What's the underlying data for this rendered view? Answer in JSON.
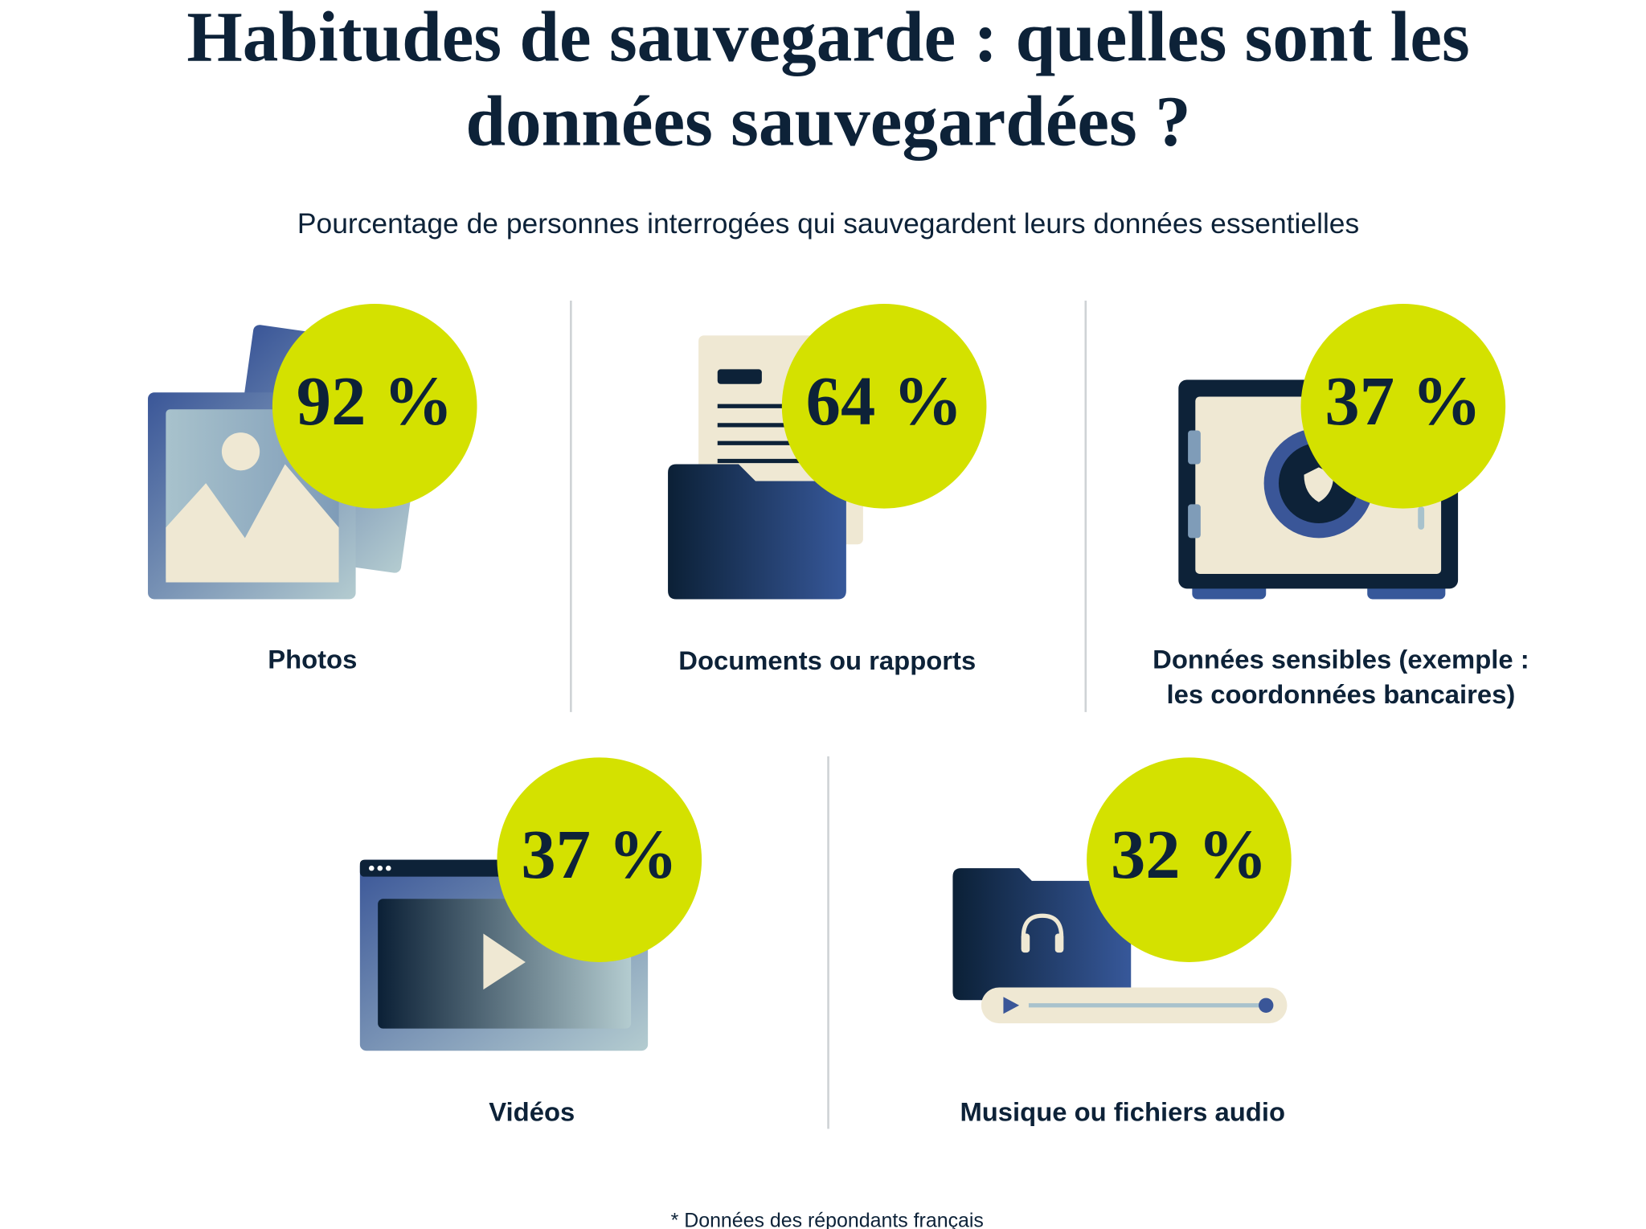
{
  "header": {
    "title_lines": [
      "Habitudes de sauvegarde : quelles sont les",
      "données sauvegardées ?"
    ],
    "subtitle": "Pourcentage de personnes interrogées qui sauvegardent leurs données essentielles"
  },
  "items": [
    {
      "value": "92 %",
      "label_lines": [
        "Photos"
      ]
    },
    {
      "value": "64 %",
      "label_lines": [
        "Documents ou rapports"
      ]
    },
    {
      "value": "37 %",
      "label_lines": [
        "Données sensibles (exemple :",
        "les coordonnées bancaires)"
      ]
    },
    {
      "value": "37 %",
      "label_lines": [
        "Vidéos"
      ]
    },
    {
      "value": "32 %",
      "label_lines": [
        "Musique ou fichiers audio"
      ]
    }
  ],
  "footnote": "* Données des répondants français"
}
